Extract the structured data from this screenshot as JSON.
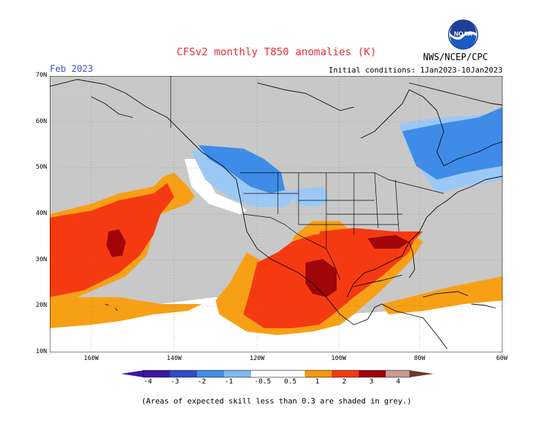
{
  "title": "CFSv2 monthly T850 anomalies (K)",
  "valid_month": "Feb 2023",
  "initial_conditions": "Initial conditions: 1Jan2023-10Jan2023",
  "agency": "NWS/NCEP/CPC",
  "logo_text": "NOAA",
  "footnote": "(Areas of expected skill less than 0.3 are shaded in grey.)",
  "lat_labels": [
    "70N",
    "60N",
    "50N",
    "40N",
    "30N",
    "20N",
    "10N"
  ],
  "lon_labels": [
    "160W",
    "140W",
    "120W",
    "100W",
    "80W",
    "60W"
  ],
  "colorbar": {
    "labels": [
      "-4",
      "-3",
      "-2",
      "-1",
      "-0.5",
      "0.5",
      "1",
      "2",
      "3",
      "4"
    ],
    "colors": [
      "#3b17a6",
      "#2d4fc9",
      "#3f8fe8",
      "#7fb8f2",
      "#ffffff",
      "#f59a0c",
      "#f53a12",
      "#a0050a",
      "#c89a90",
      "#6b3a2e"
    ]
  },
  "colors": {
    "low_skill_grey": "#c8c8c8",
    "light_blue": "#9cc8f5",
    "medium_blue": "#3e8ce8",
    "orange": "#f8a015",
    "red": "#f53a12",
    "dark_red": "#a0050a"
  }
}
